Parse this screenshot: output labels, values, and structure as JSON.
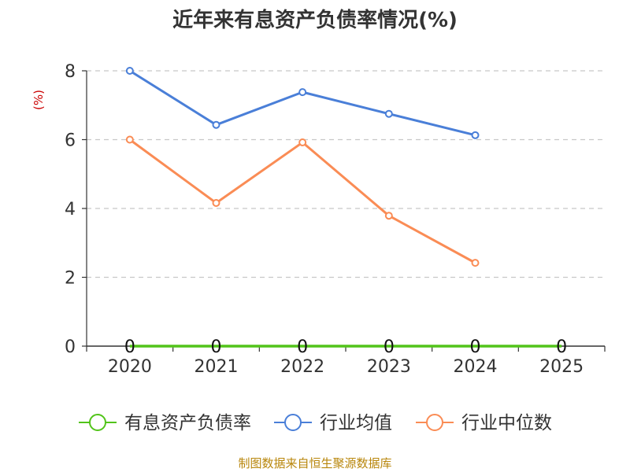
{
  "chart_data": {
    "type": "line",
    "title": "近年来有息资产负债率情况(%)",
    "ylabel": "(%)",
    "categories": [
      "2020",
      "2021",
      "2022",
      "2023",
      "2024",
      "2025"
    ],
    "ylim": [
      0,
      8
    ],
    "yticks": [
      "0",
      "2",
      "4",
      "6",
      "8"
    ],
    "grid": true,
    "legend_position": "bottom",
    "series": [
      {
        "name": "有息资产负债率",
        "color": "#52c41a",
        "values": [
          0,
          0,
          0,
          0,
          0,
          0
        ],
        "data_labels": [
          "0",
          "0",
          "0",
          "0",
          "0",
          "0"
        ]
      },
      {
        "name": "行业均值",
        "color": "#4a7fd8",
        "values": [
          8.0,
          6.43,
          7.38,
          6.75,
          6.13,
          null
        ]
      },
      {
        "name": "行业中位数",
        "color": "#fa8c55",
        "values": [
          6.0,
          4.16,
          5.92,
          3.79,
          2.42,
          null
        ]
      }
    ],
    "source": "制图数据来自恒生聚源数据库"
  }
}
